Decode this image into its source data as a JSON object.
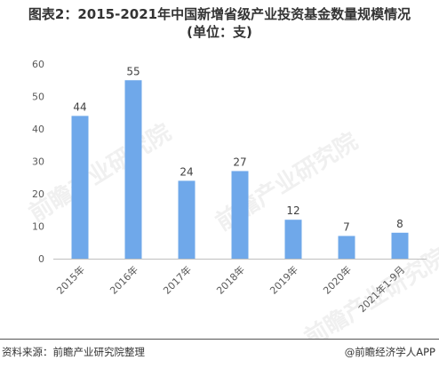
{
  "title_line1": "图表2：2015-2021年中国新增省级产业投资基金数量规模情况",
  "title_line2": "(单位：支)",
  "footer": {
    "source": "资料来源：前瞻产业研究院整理",
    "brand_symbol": "@",
    "brand": "前瞻经济学人APP"
  },
  "watermark": "前瞻产业研究院",
  "colors": {
    "bar": "#6FA8EA",
    "axis": "#BFBFBF",
    "text": "#333333",
    "watermark": "#E4E4E4"
  },
  "chart_data": {
    "type": "bar",
    "title": "图表2：2015-2021年中国新增省级产业投资基金数量规模情况",
    "xlabel": "",
    "ylabel": "",
    "categories": [
      "2015年",
      "2016年",
      "2017年",
      "2018年",
      "2019年",
      "2020年",
      "2021年1-9月"
    ],
    "values": [
      44,
      55,
      24,
      27,
      12,
      7,
      8
    ],
    "ylim": [
      0,
      60
    ],
    "yticks": [
      0,
      10,
      20,
      30,
      40,
      50,
      60
    ],
    "grid": false,
    "legend": "none"
  }
}
